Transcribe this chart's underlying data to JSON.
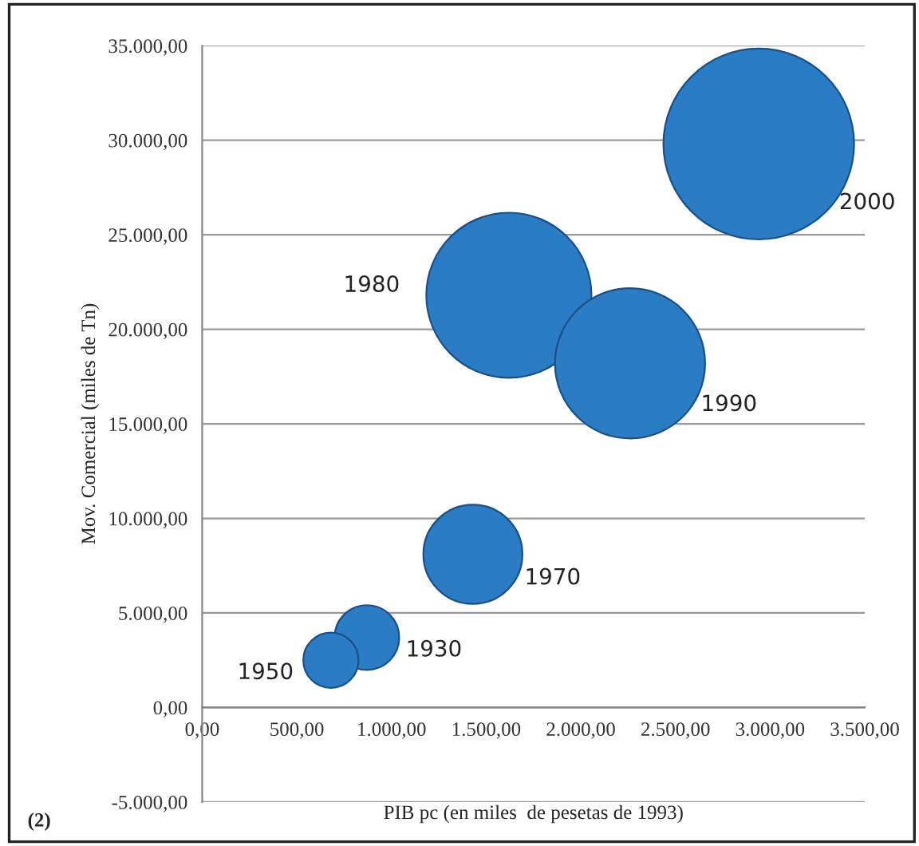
{
  "chart_data": {
    "type": "bubble",
    "xlabel": "PIB pc (en miles  de pesetas de 1993)",
    "ylabel": "Mov. Comercial (miles de Tn)",
    "series": [
      {
        "color": "#2a7cc4",
        "x": [
          870,
          680,
          1430,
          1620,
          2260,
          2940
        ],
        "values": [
          3700,
          2500,
          8100,
          21800,
          18200,
          29800
        ],
        "sizes": [
          0.115,
          0.084,
          0.27,
          0.75,
          0.62,
          1
        ]
      }
    ],
    "annotations": [
      "1930",
      "1950",
      "1970",
      "1980",
      "1990",
      "2000",
      "(2)"
    ],
    "xlim": [
      0,
      3500
    ],
    "ylim": [
      -5000,
      35000
    ],
    "xticks": [
      {
        "value": 0,
        "label": "0,00"
      },
      {
        "value": 500,
        "label": "500,00"
      },
      {
        "value": 1000,
        "label": "1.000,00"
      },
      {
        "value": 1500,
        "label": "1.500,00"
      },
      {
        "value": 2000,
        "label": "2.000,00"
      },
      {
        "value": 2500,
        "label": "2.500,00"
      },
      {
        "value": 3000,
        "label": "3.000,00"
      },
      {
        "value": 3500,
        "label": "3.500,00"
      }
    ],
    "yticks": [
      {
        "value": -5000,
        "label": "-5.000,00"
      },
      {
        "value": 0,
        "label": "0,00"
      },
      {
        "value": 5000,
        "label": "5.000,00"
      },
      {
        "value": 10000,
        "label": "10.000,00"
      },
      {
        "value": 15000,
        "label": "15.000,00"
      },
      {
        "value": 20000,
        "label": "20.000,00"
      },
      {
        "value": 25000,
        "label": "25.000,00"
      },
      {
        "value": 30000,
        "label": "30.000,00"
      },
      {
        "value": 35000,
        "label": "35.000,00"
      }
    ],
    "grid": "y",
    "legend": false
  }
}
